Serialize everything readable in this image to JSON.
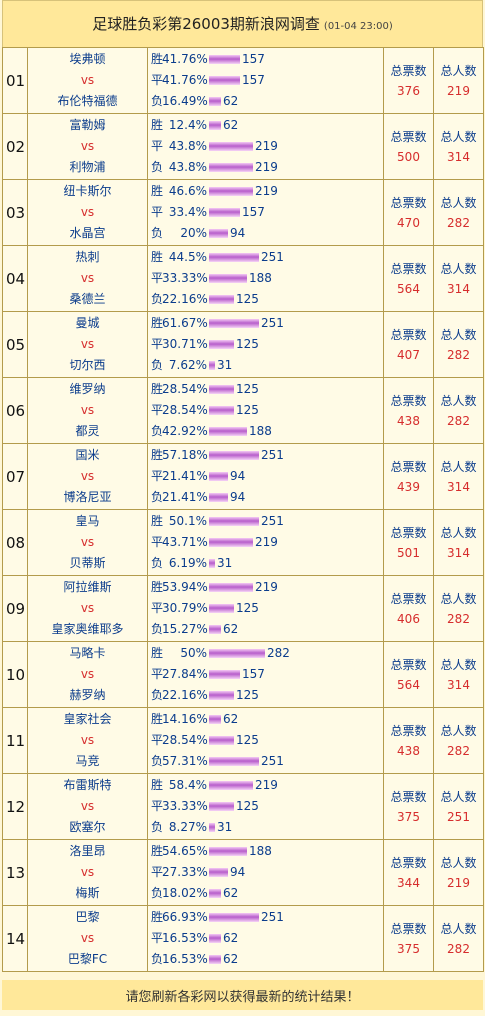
{
  "header": {
    "title": "足球胜负彩第26003期新浪网调查",
    "datetime": "(01-04 23:00)"
  },
  "labels": {
    "vs": "vs",
    "win": "胜",
    "draw": "平",
    "loss": "负",
    "total_votes": "总票数",
    "total_people": "总人数"
  },
  "matches": [
    {
      "no": "01",
      "home": "埃弗顿",
      "away": "布伦特福德",
      "win": {
        "pct": "41.76%",
        "n": "157"
      },
      "draw": {
        "pct": "41.76%",
        "n": "157"
      },
      "loss": {
        "pct": "16.49%",
        "n": "62"
      },
      "votes": "376",
      "people": "219"
    },
    {
      "no": "02",
      "home": "富勒姆",
      "away": "利物浦",
      "win": {
        "pct": "12.4%",
        "n": "62"
      },
      "draw": {
        "pct": "43.8%",
        "n": "219"
      },
      "loss": {
        "pct": "43.8%",
        "n": "219"
      },
      "votes": "500",
      "people": "314"
    },
    {
      "no": "03",
      "home": "纽卡斯尔",
      "away": "水晶宫",
      "win": {
        "pct": "46.6%",
        "n": "219"
      },
      "draw": {
        "pct": "33.4%",
        "n": "157"
      },
      "loss": {
        "pct": "20%",
        "n": "94"
      },
      "votes": "470",
      "people": "282"
    },
    {
      "no": "04",
      "home": "热刺",
      "away": "桑德兰",
      "win": {
        "pct": "44.5%",
        "n": "251"
      },
      "draw": {
        "pct": "33.33%",
        "n": "188"
      },
      "loss": {
        "pct": "22.16%",
        "n": "125"
      },
      "votes": "564",
      "people": "314"
    },
    {
      "no": "05",
      "home": "曼城",
      "away": "切尔西",
      "win": {
        "pct": "61.67%",
        "n": "251"
      },
      "draw": {
        "pct": "30.71%",
        "n": "125"
      },
      "loss": {
        "pct": "7.62%",
        "n": "31"
      },
      "votes": "407",
      "people": "282"
    },
    {
      "no": "06",
      "home": "维罗纳",
      "away": "都灵",
      "win": {
        "pct": "28.54%",
        "n": "125"
      },
      "draw": {
        "pct": "28.54%",
        "n": "125"
      },
      "loss": {
        "pct": "42.92%",
        "n": "188"
      },
      "votes": "438",
      "people": "282"
    },
    {
      "no": "07",
      "home": "国米",
      "away": "博洛尼亚",
      "win": {
        "pct": "57.18%",
        "n": "251"
      },
      "draw": {
        "pct": "21.41%",
        "n": "94"
      },
      "loss": {
        "pct": "21.41%",
        "n": "94"
      },
      "votes": "439",
      "people": "314"
    },
    {
      "no": "08",
      "home": "皇马",
      "away": "贝蒂斯",
      "win": {
        "pct": "50.1%",
        "n": "251"
      },
      "draw": {
        "pct": "43.71%",
        "n": "219"
      },
      "loss": {
        "pct": "6.19%",
        "n": "31"
      },
      "votes": "501",
      "people": "314"
    },
    {
      "no": "09",
      "home": "阿拉维斯",
      "away": "皇家奥维耶多",
      "win": {
        "pct": "53.94%",
        "n": "219"
      },
      "draw": {
        "pct": "30.79%",
        "n": "125"
      },
      "loss": {
        "pct": "15.27%",
        "n": "62"
      },
      "votes": "406",
      "people": "282"
    },
    {
      "no": "10",
      "home": "马略卡",
      "away": "赫罗纳",
      "win": {
        "pct": "50%",
        "n": "282"
      },
      "draw": {
        "pct": "27.84%",
        "n": "157"
      },
      "loss": {
        "pct": "22.16%",
        "n": "125"
      },
      "votes": "564",
      "people": "314"
    },
    {
      "no": "11",
      "home": "皇家社会",
      "away": "马竞",
      "win": {
        "pct": "14.16%",
        "n": "62"
      },
      "draw": {
        "pct": "28.54%",
        "n": "125"
      },
      "loss": {
        "pct": "57.31%",
        "n": "251"
      },
      "votes": "438",
      "people": "282"
    },
    {
      "no": "12",
      "home": "布雷斯特",
      "away": "欧塞尔",
      "win": {
        "pct": "58.4%",
        "n": "219"
      },
      "draw": {
        "pct": "33.33%",
        "n": "125"
      },
      "loss": {
        "pct": "8.27%",
        "n": "31"
      },
      "votes": "375",
      "people": "251"
    },
    {
      "no": "13",
      "home": "洛里昂",
      "away": "梅斯",
      "win": {
        "pct": "54.65%",
        "n": "188"
      },
      "draw": {
        "pct": "27.33%",
        "n": "94"
      },
      "loss": {
        "pct": "18.02%",
        "n": "62"
      },
      "votes": "344",
      "people": "219"
    },
    {
      "no": "14",
      "home": "巴黎",
      "away": "巴黎FC",
      "win": {
        "pct": "66.93%",
        "n": "251"
      },
      "draw": {
        "pct": "16.53%",
        "n": "62"
      },
      "loss": {
        "pct": "16.53%",
        "n": "62"
      },
      "votes": "375",
      "people": "282"
    }
  ],
  "footer": {
    "text": "请您刷新各彩网以获得最新的统计结果！"
  }
}
